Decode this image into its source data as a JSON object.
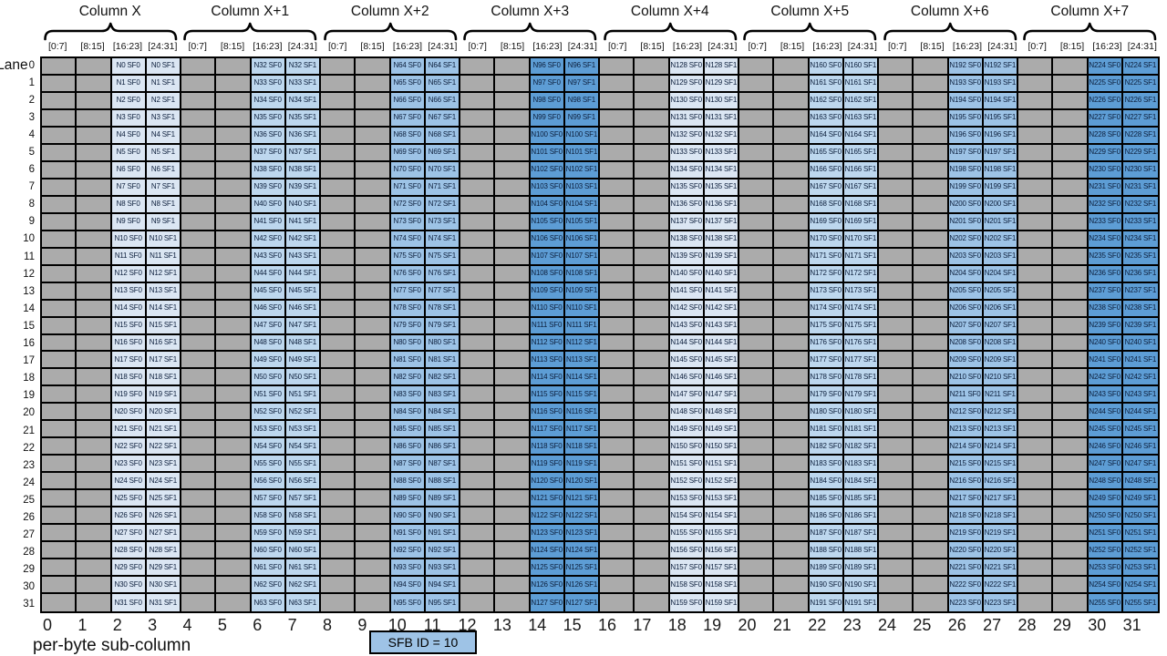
{
  "diagram": {
    "columns": [
      {
        "title": "Column X",
        "n_start": 0,
        "fill": "#dbe6f3"
      },
      {
        "title": "Column X+1",
        "n_start": 32,
        "fill": "#bdd7ee"
      },
      {
        "title": "Column X+2",
        "n_start": 64,
        "fill": "#9dc3e6"
      },
      {
        "title": "Column X+3",
        "n_start": 96,
        "fill": "#5d9dd5"
      },
      {
        "title": "Column X+4",
        "n_start": 128,
        "fill": "#dbe6f3"
      },
      {
        "title": "Column X+5",
        "n_start": 160,
        "fill": "#bdd7ee"
      },
      {
        "title": "Column X+6",
        "n_start": 192,
        "fill": "#9dc3e6"
      },
      {
        "title": "Column X+7",
        "n_start": 224,
        "fill": "#5d9dd5"
      }
    ],
    "byte_ranges": [
      "[0:7]",
      "[8:15]",
      "[16:23]",
      "[24:31]"
    ],
    "sf_labels": [
      "SF0",
      "SF1"
    ],
    "cell_label_format": "N{n} {sf}",
    "n_formula": "n = 32 * column_index + lane",
    "num_lanes": 32,
    "lane_axis": {
      "label": "Lane",
      "numbers": [
        0,
        1,
        2,
        3,
        4,
        5,
        6,
        7,
        8,
        9,
        10,
        11,
        12,
        13,
        14,
        15,
        16,
        17,
        18,
        19,
        20,
        21,
        22,
        23,
        24,
        25,
        26,
        27,
        28,
        29,
        30,
        31
      ]
    },
    "footer": {
      "byte_numbers": [
        0,
        1,
        2,
        3,
        4,
        5,
        6,
        7,
        8,
        9,
        10,
        11,
        12,
        13,
        14,
        15,
        16,
        17,
        18,
        19,
        20,
        21,
        22,
        23,
        24,
        25,
        26,
        27,
        28,
        29,
        30,
        31
      ],
      "axis_label": "per-byte sub-column",
      "badge_label": "SFB ID = 10"
    },
    "colors": {
      "empty_cell": "#ababab",
      "grid_line": "#000000",
      "cell_text": "#0d1f3c",
      "badge_fill": "#9ec3e6",
      "background": "#ffffff"
    }
  }
}
